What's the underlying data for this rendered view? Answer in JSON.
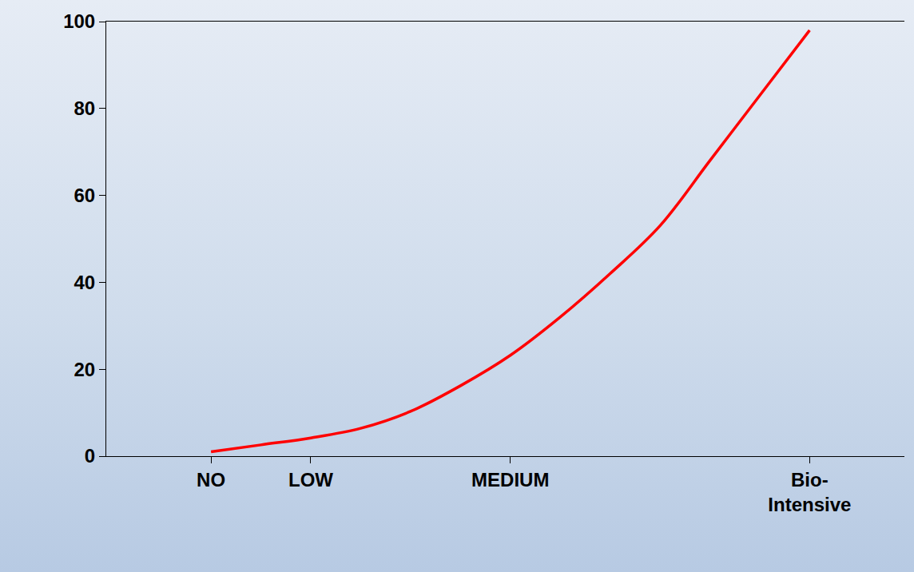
{
  "chart_data": {
    "type": "line",
    "categories": [
      "NO",
      null,
      "LOW",
      null,
      null,
      null,
      "MEDIUM",
      null,
      null,
      null,
      null,
      null,
      "Bio-Intensive"
    ],
    "values": [
      1,
      2.6,
      4.2,
      6.4,
      10.3,
      16.2,
      23.2,
      32,
      42,
      53,
      68,
      83,
      98
    ],
    "color": "#ff0000",
    "ylim": [
      0,
      100
    ],
    "yticks": [
      0,
      20,
      40,
      60,
      80,
      100
    ],
    "grid": false
  }
}
